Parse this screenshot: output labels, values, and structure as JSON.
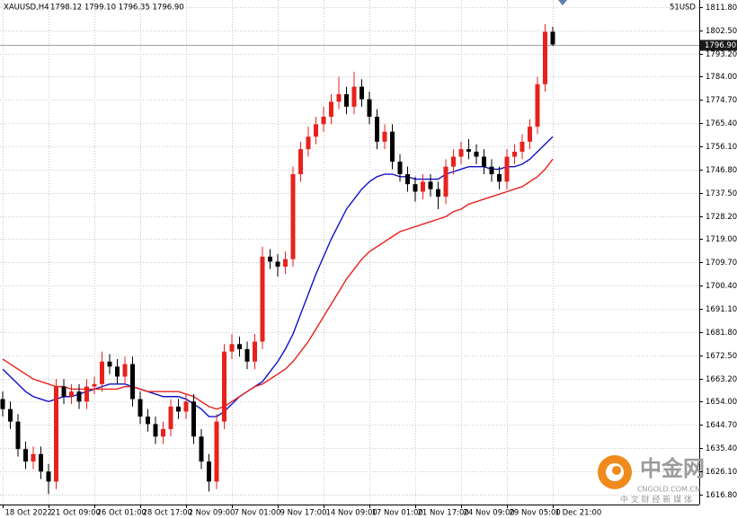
{
  "chart_data": {
    "type": "candlestick",
    "symbol": "XAUUSD,H4",
    "ohlc_text": "1798.12 1799.10 1796.35 1796.90",
    "account": "51USD",
    "up_color": "#e8211d",
    "down_color": "#000000",
    "grid": true,
    "current_price": {
      "value": 1796.9,
      "label": "1796.90"
    },
    "ylim": [
      1612.8,
      1814.7
    ],
    "yticks": [
      {
        "value": 1811.8,
        "label": "1811.80"
      },
      {
        "value": 1802.5,
        "label": "1802.50"
      },
      {
        "value": 1793.2,
        "label": "1793.20"
      },
      {
        "value": 1784,
        "label": "1784.00"
      },
      {
        "value": 1774.7,
        "label": "1774.70"
      },
      {
        "value": 1765.4,
        "label": "1765.40"
      },
      {
        "value": 1756.1,
        "label": "1756.10"
      },
      {
        "value": 1746.8,
        "label": "1746.80"
      },
      {
        "value": 1737.5,
        "label": "1737.50"
      },
      {
        "value": 1728.2,
        "label": "1728.20"
      },
      {
        "value": 1719,
        "label": "1719.00"
      },
      {
        "value": 1709.7,
        "label": "1709.70"
      },
      {
        "value": 1700.4,
        "label": "1700.40"
      },
      {
        "value": 1691.1,
        "label": "1691.10"
      },
      {
        "value": 1681.8,
        "label": "1681.80"
      },
      {
        "value": 1672.5,
        "label": "1672.50"
      },
      {
        "value": 1663.2,
        "label": "1663.20"
      },
      {
        "value": 1654,
        "label": "1654.00"
      },
      {
        "value": 1644.7,
        "label": "1644.70"
      },
      {
        "value": 1635.4,
        "label": "1635.40"
      },
      {
        "value": 1626.1,
        "label": "1626.10"
      },
      {
        "value": 1616.8,
        "label": "1616.80"
      }
    ],
    "categories": [
      "18 Oct 2022",
      null,
      null,
      null,
      null,
      null,
      "21 Oct 09:00",
      null,
      null,
      null,
      null,
      null,
      "26 Oct 01:00",
      null,
      null,
      null,
      null,
      null,
      "28 Oct 17:00",
      null,
      null,
      null,
      null,
      null,
      "2 Nov 09:00",
      null,
      null,
      null,
      null,
      null,
      "7 Nov 01:00",
      null,
      null,
      null,
      null,
      null,
      "9 Nov 17:00",
      null,
      null,
      null,
      null,
      null,
      "14 Nov 09:00",
      null,
      null,
      null,
      null,
      null,
      "17 Nov 01:00",
      null,
      null,
      null,
      null,
      null,
      "21 Nov 17:00",
      null,
      null,
      null,
      null,
      null,
      "24 Nov 09:00",
      null,
      null,
      null,
      null,
      null,
      "29 Nov 05:00",
      null,
      null,
      null,
      null,
      null,
      "1 Dec 21:00"
    ],
    "open": [
      1655,
      1651,
      1646,
      1635,
      1630,
      1633,
      1626,
      1622,
      1660,
      1656,
      1658,
      1654,
      1660,
      1661,
      1670,
      1668,
      1664,
      1669,
      1655,
      1648,
      1645,
      1640,
      1643,
      1652,
      1650,
      1654,
      1640,
      1630,
      1622,
      1646,
      1674,
      1677,
      1675,
      1670,
      1678,
      1712,
      1710,
      1708,
      1711,
      1745,
      1755,
      1760,
      1765,
      1768,
      1774,
      1777,
      1772,
      1780,
      1775,
      1768,
      1758,
      1762,
      1750,
      1745,
      1741,
      1738,
      1742,
      1739,
      1736,
      1748,
      1752,
      1755,
      1754,
      1752,
      1748,
      1745,
      1742,
      1752,
      1754,
      1758,
      1764,
      1781,
      1802
    ],
    "high": [
      1658,
      1654,
      1649,
      1638,
      1636,
      1636,
      1629,
      1663,
      1663,
      1661,
      1661,
      1663,
      1664,
      1674,
      1673,
      1671,
      1672,
      1672,
      1658,
      1651,
      1648,
      1646,
      1655,
      1655,
      1657,
      1657,
      1643,
      1633,
      1649,
      1677,
      1681,
      1680,
      1678,
      1681,
      1716,
      1715,
      1713,
      1714,
      1748,
      1758,
      1764,
      1768,
      1772,
      1777,
      1784,
      1780,
      1786,
      1783,
      1778,
      1771,
      1765,
      1765,
      1753,
      1748,
      1744,
      1745,
      1745,
      1742,
      1751,
      1755,
      1758,
      1759,
      1757,
      1755,
      1751,
      1748,
      1755,
      1757,
      1761,
      1767,
      1784,
      1805,
      1804
    ],
    "low": [
      1648,
      1643,
      1632,
      1627,
      1627,
      1623,
      1617,
      1619,
      1653,
      1653,
      1651,
      1651,
      1657,
      1658,
      1665,
      1661,
      1661,
      1652,
      1645,
      1642,
      1637,
      1637,
      1640,
      1647,
      1647,
      1637,
      1627,
      1618,
      1619,
      1643,
      1671,
      1672,
      1667,
      1667,
      1675,
      1707,
      1704,
      1705,
      1708,
      1742,
      1752,
      1757,
      1762,
      1765,
      1771,
      1769,
      1769,
      1772,
      1765,
      1755,
      1755,
      1747,
      1742,
      1738,
      1734,
      1735,
      1736,
      1731,
      1733,
      1745,
      1749,
      1751,
      1749,
      1745,
      1742,
      1739,
      1739,
      1749,
      1751,
      1755,
      1761,
      1778,
      1796.35
    ],
    "close": [
      1651,
      1646,
      1635,
      1630,
      1633,
      1626,
      1622,
      1660,
      1656,
      1658,
      1654,
      1660,
      1661,
      1670,
      1668,
      1664,
      1669,
      1655,
      1648,
      1645,
      1640,
      1643,
      1652,
      1650,
      1654,
      1640,
      1630,
      1622,
      1646,
      1674,
      1677,
      1675,
      1670,
      1678,
      1712,
      1710,
      1708,
      1711,
      1745,
      1755,
      1760,
      1765,
      1768,
      1774,
      1777,
      1772,
      1780,
      1775,
      1768,
      1758,
      1762,
      1750,
      1745,
      1741,
      1738,
      1742,
      1739,
      1736,
      1748,
      1752,
      1755,
      1754,
      1752,
      1748,
      1745,
      1742,
      1752,
      1754,
      1758,
      1764,
      1781,
      1802,
      1796.9
    ],
    "series": [
      {
        "color": "#1010c8",
        "values": [
          1667,
          1664,
          1661,
          1658,
          1656,
          1655,
          1654,
          1655,
          1656,
          1656,
          1657,
          1658,
          1659,
          1660,
          1661,
          1661,
          1661,
          1660,
          1659,
          1658,
          1657,
          1656,
          1656,
          1656,
          1655,
          1653,
          1651,
          1648,
          1648,
          1650,
          1653,
          1656,
          1658,
          1660,
          1662,
          1666,
          1670,
          1675,
          1681,
          1689,
          1697,
          1705,
          1712,
          1719,
          1725,
          1731,
          1735,
          1739,
          1742,
          1744,
          1745,
          1745,
          1744,
          1744,
          1743,
          1743,
          1743,
          1743,
          1745,
          1746,
          1747,
          1748,
          1748,
          1748,
          1747,
          1747,
          1748,
          1748,
          1749,
          1751,
          1754,
          1757,
          1760
        ]
      },
      {
        "color": "#e8211d",
        "values": [
          1671,
          1669,
          1667,
          1665,
          1663,
          1662,
          1661,
          1660,
          1660,
          1659,
          1659,
          1659,
          1659,
          1659,
          1659,
          1659,
          1660,
          1660,
          1659,
          1658,
          1658,
          1658,
          1658,
          1658,
          1657,
          1656,
          1654,
          1652,
          1651,
          1652,
          1654,
          1656,
          1658,
          1660,
          1661,
          1663,
          1665,
          1667,
          1670,
          1674,
          1678,
          1683,
          1688,
          1693,
          1698,
          1703,
          1707,
          1711,
          1714,
          1716,
          1718,
          1720,
          1722,
          1723,
          1724,
          1725,
          1726,
          1727,
          1728,
          1730,
          1731,
          1733,
          1734,
          1735,
          1736,
          1737,
          1738,
          1739,
          1740,
          1742,
          1744,
          1747,
          1751
        ]
      }
    ]
  },
  "logo": {
    "name": "中金网",
    "site": "CNGOLD.COM.CN",
    "slogan": "中 文 财 经 新 媒 体"
  }
}
